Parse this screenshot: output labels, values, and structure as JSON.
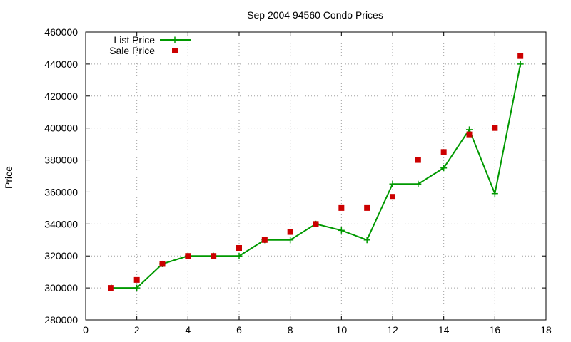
{
  "chart_data": {
    "type": "line",
    "title": "Sep 2004 94560 Condo Prices",
    "xlabel": "",
    "ylabel": "Price",
    "xlim": [
      0,
      18
    ],
    "ylim": [
      280000,
      460000
    ],
    "xticks": [
      0,
      2,
      4,
      6,
      8,
      10,
      12,
      14,
      16,
      18
    ],
    "yticks": [
      280000,
      300000,
      320000,
      340000,
      360000,
      380000,
      400000,
      420000,
      440000,
      460000
    ],
    "grid": true,
    "legend_position": "top-left",
    "series": [
      {
        "name": "List Price",
        "style": "line-with-plus-markers",
        "color": "#009900",
        "x": [
          1,
          2,
          3,
          4,
          5,
          6,
          7,
          8,
          9,
          10,
          11,
          12,
          13,
          14,
          15,
          16,
          17
        ],
        "values": [
          300000,
          300000,
          315000,
          320000,
          320000,
          320000,
          330000,
          330000,
          340000,
          336000,
          330000,
          365000,
          365000,
          375000,
          399000,
          359000,
          440000
        ]
      },
      {
        "name": "Sale Price",
        "style": "square-markers",
        "color": "#cc0000",
        "x": [
          1,
          2,
          3,
          4,
          5,
          6,
          7,
          8,
          9,
          10,
          11,
          12,
          13,
          14,
          15,
          16,
          17
        ],
        "values": [
          300000,
          305000,
          315000,
          320000,
          320000,
          325000,
          330000,
          335000,
          340000,
          350000,
          350000,
          357000,
          380000,
          385000,
          396000,
          400000,
          445000
        ]
      }
    ]
  }
}
